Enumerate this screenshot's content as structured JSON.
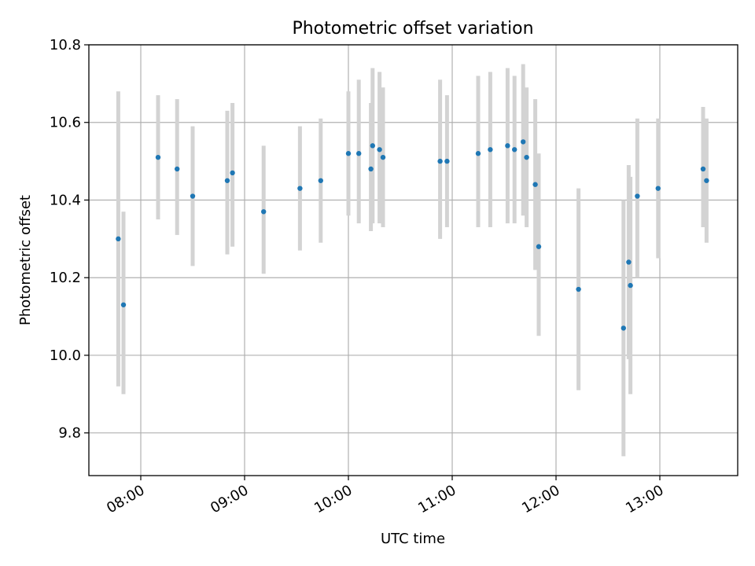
{
  "chart_data": {
    "type": "scatter",
    "title": "Photometric offset variation",
    "xlabel": "UTC time",
    "ylabel": "Photometric offset",
    "xlim": [
      "07:30",
      "13:45"
    ],
    "ylim": [
      9.69,
      10.8
    ],
    "x_ticks": [
      "08:00",
      "09:00",
      "10:00",
      "11:00",
      "12:00",
      "13:00"
    ],
    "y_ticks": [
      "9.8",
      "10.0",
      "10.2",
      "10.4",
      "10.6",
      "10.8"
    ],
    "grid": true,
    "colors": {
      "point": "#1f77b4",
      "errorbar": "#d3d3d3",
      "grid": "#b0b0b0"
    },
    "points": [
      {
        "x": "07:47",
        "y": 10.3,
        "ylow": 9.92,
        "yhigh": 10.68
      },
      {
        "x": "07:50",
        "y": 10.13,
        "ylow": 9.9,
        "yhigh": 10.37
      },
      {
        "x": "08:10",
        "y": 10.51,
        "ylow": 10.35,
        "yhigh": 10.67
      },
      {
        "x": "08:21",
        "y": 10.48,
        "ylow": 10.31,
        "yhigh": 10.66
      },
      {
        "x": "08:30",
        "y": 10.41,
        "ylow": 10.23,
        "yhigh": 10.59
      },
      {
        "x": "08:50",
        "y": 10.45,
        "ylow": 10.26,
        "yhigh": 10.63
      },
      {
        "x": "08:53",
        "y": 10.47,
        "ylow": 10.28,
        "yhigh": 10.65
      },
      {
        "x": "09:11",
        "y": 10.37,
        "ylow": 10.21,
        "yhigh": 10.54
      },
      {
        "x": "09:32",
        "y": 10.43,
        "ylow": 10.27,
        "yhigh": 10.59
      },
      {
        "x": "09:44",
        "y": 10.45,
        "ylow": 10.29,
        "yhigh": 10.61
      },
      {
        "x": "10:00",
        "y": 10.52,
        "ylow": 10.36,
        "yhigh": 10.68
      },
      {
        "x": "10:06",
        "y": 10.52,
        "ylow": 10.34,
        "yhigh": 10.71
      },
      {
        "x": "10:13",
        "y": 10.48,
        "ylow": 10.32,
        "yhigh": 10.65
      },
      {
        "x": "10:14",
        "y": 10.54,
        "ylow": 10.34,
        "yhigh": 10.74
      },
      {
        "x": "10:18",
        "y": 10.53,
        "ylow": 10.34,
        "yhigh": 10.73
      },
      {
        "x": "10:20",
        "y": 10.51,
        "ylow": 10.33,
        "yhigh": 10.69
      },
      {
        "x": "10:53",
        "y": 10.5,
        "ylow": 10.3,
        "yhigh": 10.71
      },
      {
        "x": "10:57",
        "y": 10.5,
        "ylow": 10.33,
        "yhigh": 10.67
      },
      {
        "x": "11:15",
        "y": 10.52,
        "ylow": 10.33,
        "yhigh": 10.72
      },
      {
        "x": "11:22",
        "y": 10.53,
        "ylow": 10.33,
        "yhigh": 10.73
      },
      {
        "x": "11:32",
        "y": 10.54,
        "ylow": 10.34,
        "yhigh": 10.74
      },
      {
        "x": "11:36",
        "y": 10.53,
        "ylow": 10.34,
        "yhigh": 10.72
      },
      {
        "x": "11:41",
        "y": 10.55,
        "ylow": 10.36,
        "yhigh": 10.75
      },
      {
        "x": "11:43",
        "y": 10.51,
        "ylow": 10.33,
        "yhigh": 10.69
      },
      {
        "x": "11:48",
        "y": 10.44,
        "ylow": 10.22,
        "yhigh": 10.66
      },
      {
        "x": "11:50",
        "y": 10.28,
        "ylow": 10.05,
        "yhigh": 10.52
      },
      {
        "x": "12:13",
        "y": 10.17,
        "ylow": 9.91,
        "yhigh": 10.43
      },
      {
        "x": "12:39",
        "y": 10.07,
        "ylow": 9.74,
        "yhigh": 10.4
      },
      {
        "x": "12:42",
        "y": 10.24,
        "ylow": 9.99,
        "yhigh": 10.49
      },
      {
        "x": "12:43",
        "y": 10.18,
        "ylow": 9.9,
        "yhigh": 10.46
      },
      {
        "x": "12:47",
        "y": 10.41,
        "ylow": 10.2,
        "yhigh": 10.61
      },
      {
        "x": "12:59",
        "y": 10.43,
        "ylow": 10.25,
        "yhigh": 10.61
      },
      {
        "x": "13:25",
        "y": 10.48,
        "ylow": 10.33,
        "yhigh": 10.64
      },
      {
        "x": "13:27",
        "y": 10.45,
        "ylow": 10.29,
        "yhigh": 10.61
      }
    ]
  }
}
